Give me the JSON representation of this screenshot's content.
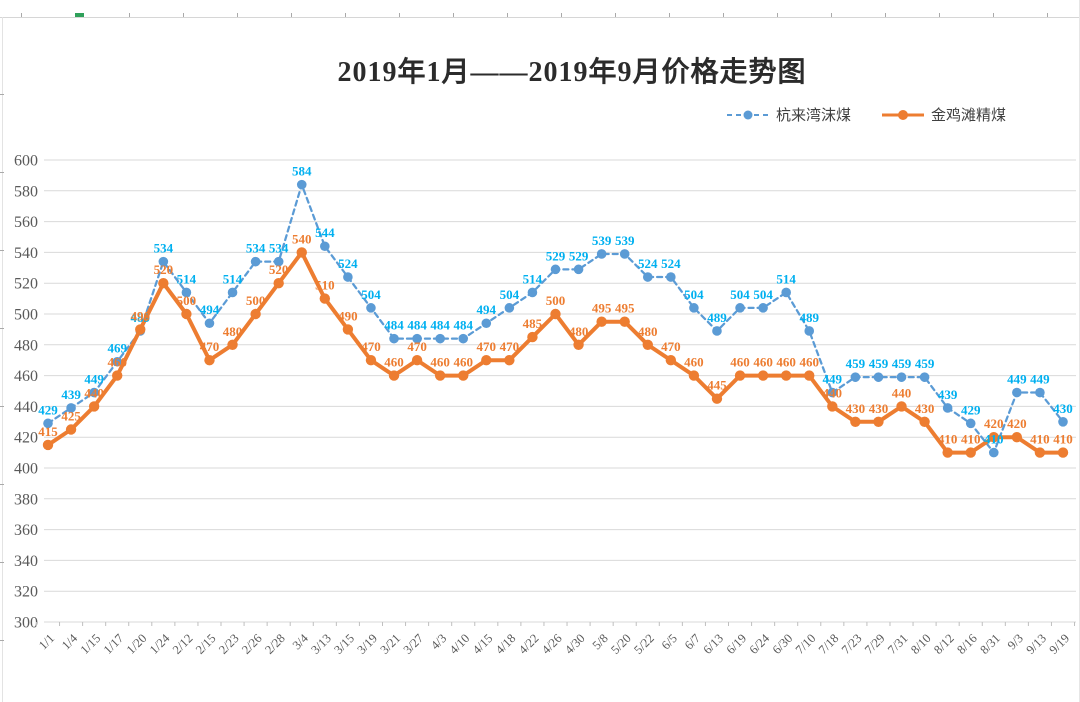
{
  "chart_data": {
    "type": "line",
    "title": "2019年1月——2019年9月价格走势图",
    "categories": [
      "1/1",
      "1/4",
      "1/15",
      "1/17",
      "1/20",
      "1/24",
      "2/12",
      "2/15",
      "2/23",
      "2/26",
      "2/28",
      "3/4",
      "3/13",
      "3/15",
      "3/19",
      "3/21",
      "3/27",
      "4/3",
      "4/10",
      "4/15",
      "4/18",
      "4/22",
      "4/26",
      "4/30",
      "5/8",
      "5/20",
      "5/22",
      "6/5",
      "6/7",
      "6/13",
      "6/19",
      "6/24",
      "6/30",
      "7/10",
      "7/18",
      "7/23",
      "7/29",
      "7/31",
      "8/10",
      "8/12",
      "8/16",
      "8/31",
      "9/3",
      "9/13",
      "9/19"
    ],
    "series": [
      {
        "name": "杭来湾沫煤",
        "style": "dashed",
        "color": "#5b9bd5",
        "label_color": "#00b0f0",
        "values": [
          429,
          439,
          449,
          469,
          489,
          534,
          514,
          494,
          514,
          534,
          534,
          584,
          544,
          524,
          504,
          484,
          484,
          484,
          484,
          494,
          504,
          514,
          529,
          529,
          539,
          539,
          524,
          524,
          504,
          489,
          504,
          504,
          514,
          489,
          449,
          459,
          459,
          459,
          459,
          439,
          429,
          410,
          449,
          449,
          430
        ]
      },
      {
        "name": "金鸡滩精煤",
        "style": "solid",
        "color": "#ed7d31",
        "label_color": "#ed7d31",
        "values": [
          415,
          425,
          440,
          460,
          490,
          520,
          500,
          470,
          480,
          500,
          520,
          540,
          510,
          490,
          470,
          460,
          470,
          460,
          460,
          470,
          470,
          485,
          500,
          480,
          495,
          495,
          480,
          470,
          460,
          445,
          460,
          460,
          460,
          460,
          440,
          430,
          430,
          440,
          430,
          410,
          410,
          420,
          420,
          410,
          410
        ]
      }
    ],
    "y_axis": {
      "min": 300,
      "max": 600,
      "step": 20,
      "ticks": [
        300,
        320,
        340,
        360,
        380,
        400,
        420,
        440,
        460,
        480,
        500,
        520,
        540,
        560,
        580,
        600
      ]
    },
    "x_axis_label_rotation": 45,
    "grid": true,
    "legend_position": "top-right"
  },
  "colors": {
    "gridline": "#d9d9d9",
    "axis_text": "#595959",
    "axis_tick": "#bfbfbf",
    "selected_column_tick": "#2fa05a",
    "background": "#ffffff"
  }
}
